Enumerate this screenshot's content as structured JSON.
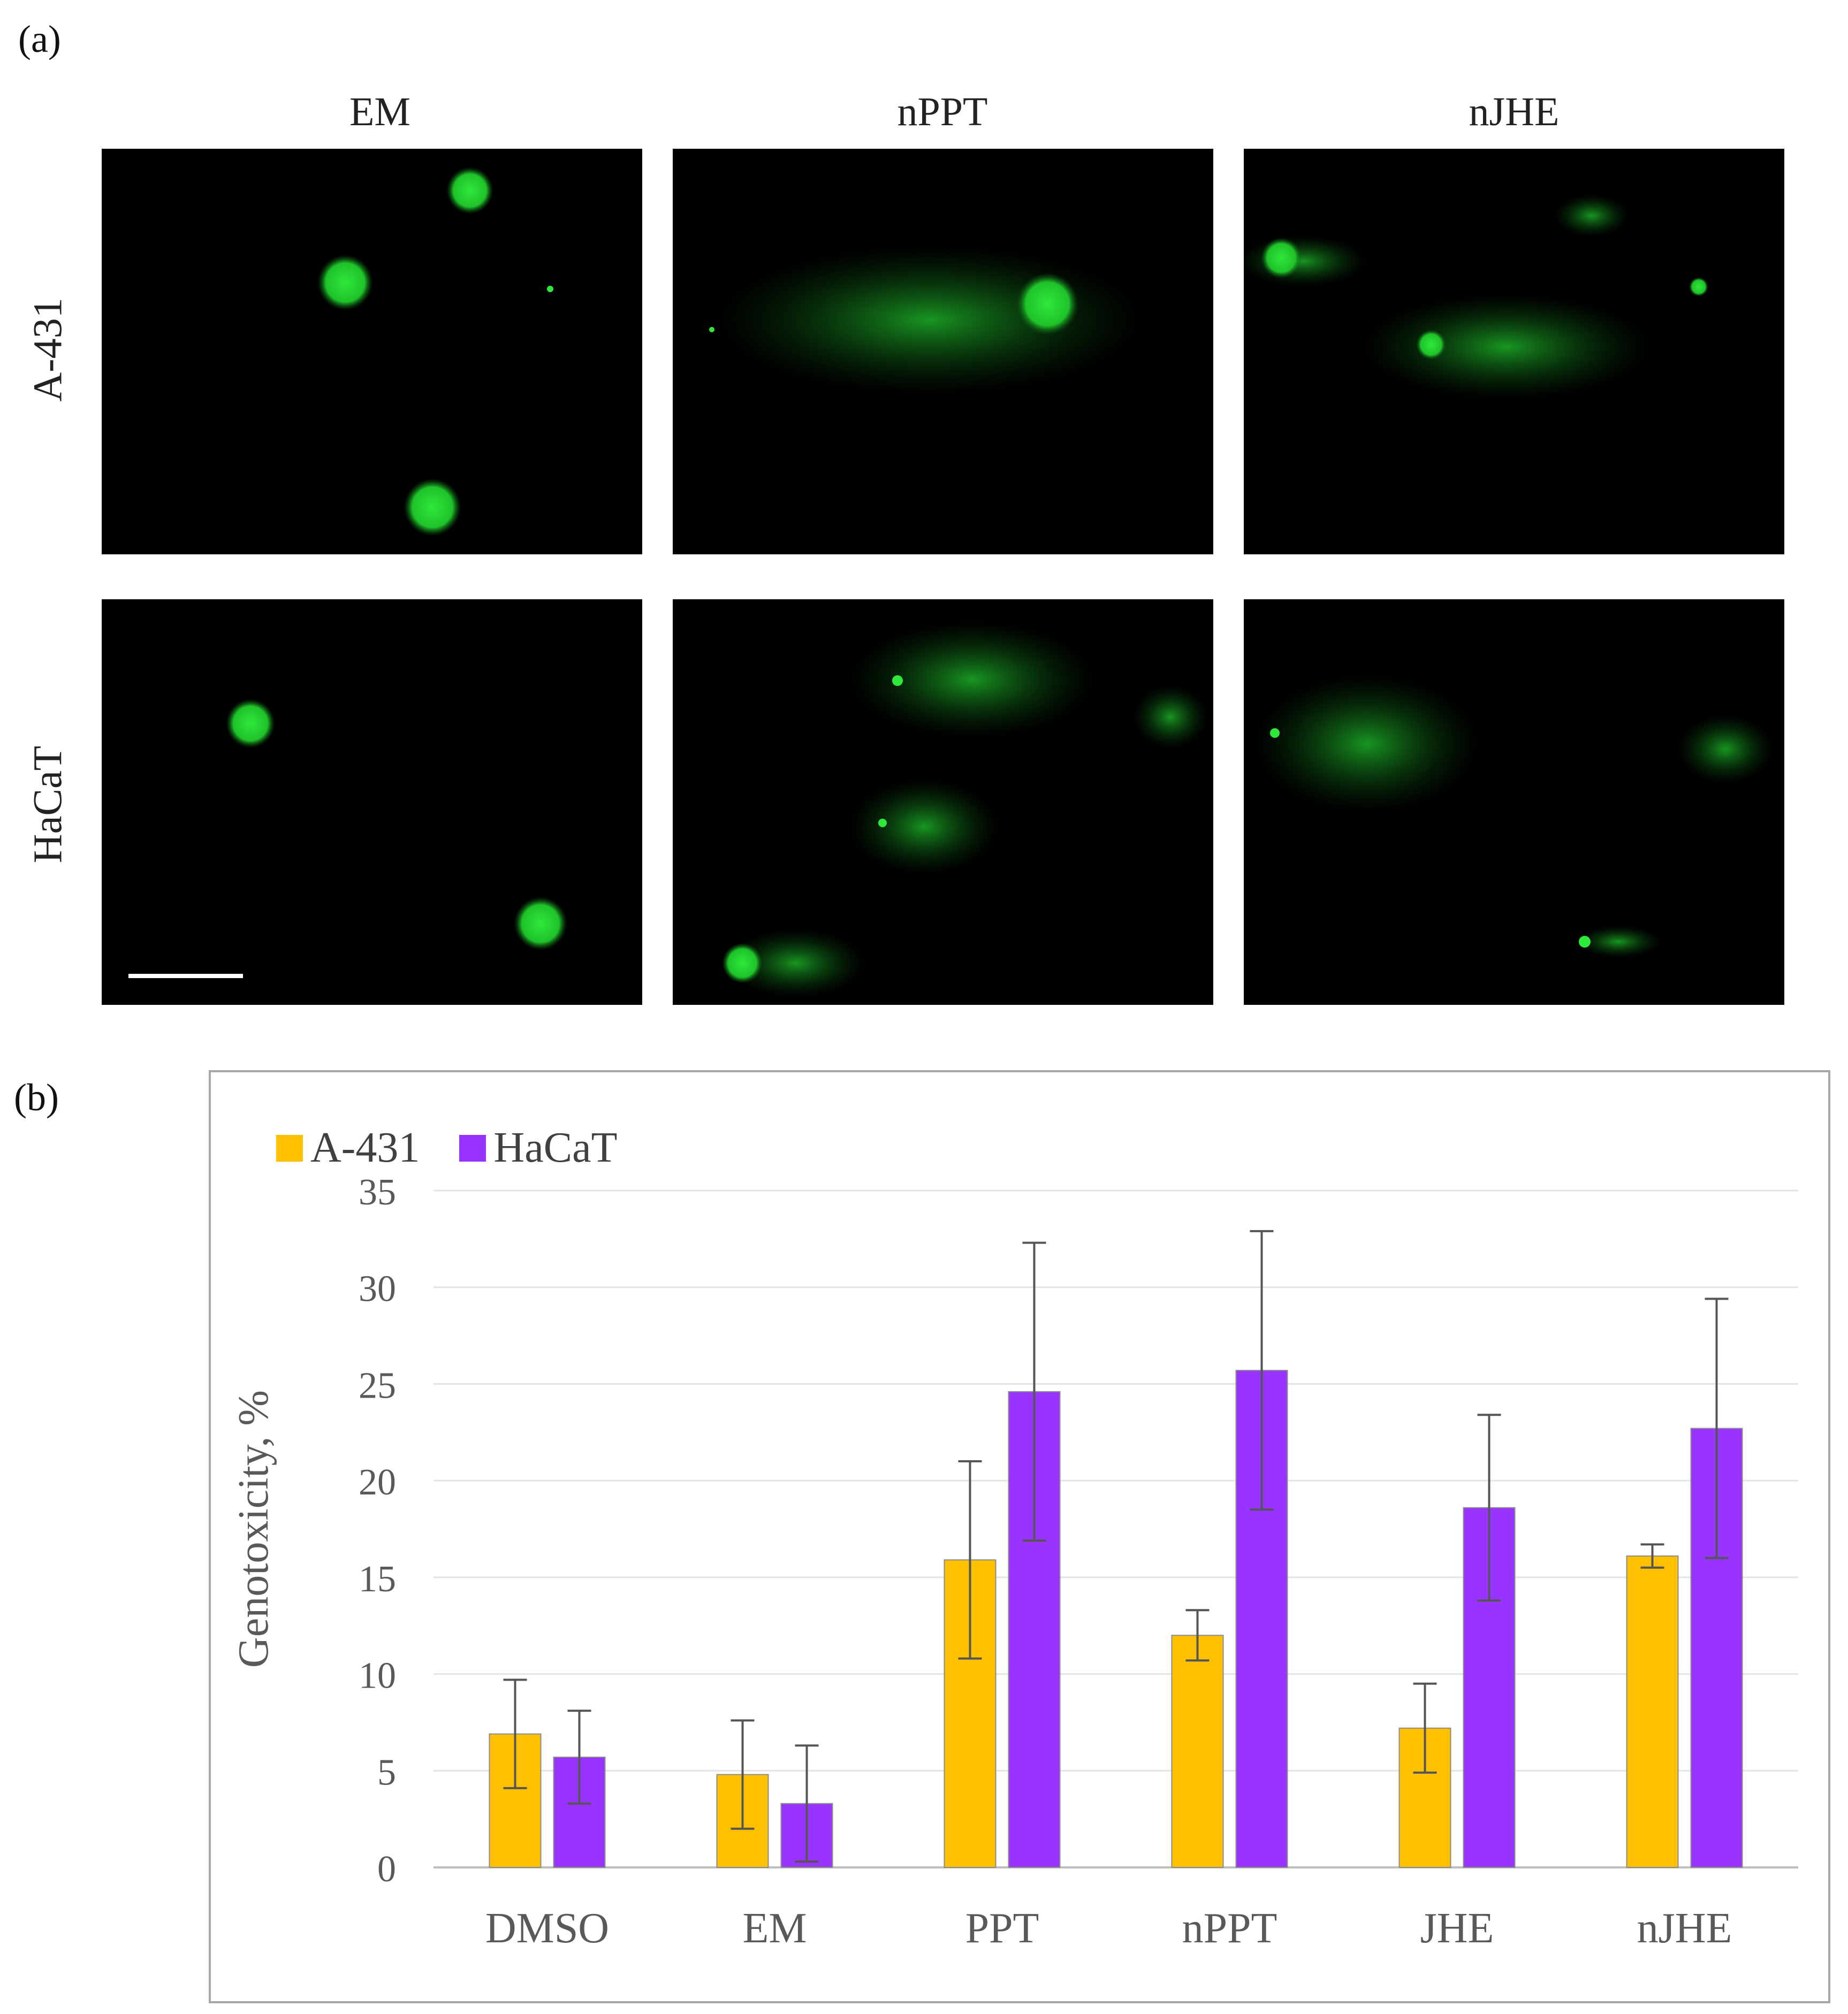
{
  "panel_a": {
    "label": "(a)",
    "columns": [
      "EM",
      "nPPT",
      "nJHE"
    ],
    "rows": [
      "A-431",
      "HaCaT"
    ]
  },
  "panel_b": {
    "label": "(b)"
  },
  "colors": {
    "A-431": "#ffc000",
    "HaCaT": "#9933ff",
    "comet": "#1fd12a",
    "error": "#555555",
    "grid": "#e4e4e4"
  },
  "chart_data": {
    "type": "bar",
    "categories": [
      "DMSO",
      "EM",
      "PPT",
      "nPPT",
      "JHE",
      "nJHE"
    ],
    "series": [
      {
        "name": "A-431",
        "values": [
          6.9,
          4.8,
          15.9,
          12.0,
          7.2,
          16.1
        ],
        "errors": [
          2.8,
          2.8,
          5.1,
          1.3,
          2.3,
          0.6
        ]
      },
      {
        "name": "HaCaT",
        "values": [
          5.7,
          3.3,
          24.6,
          25.7,
          18.6,
          22.7
        ],
        "errors": [
          2.4,
          3.0,
          7.7,
          7.2,
          4.8,
          6.7
        ]
      }
    ],
    "title": "",
    "xlabel": "",
    "ylabel": "Genotoxicity, %",
    "ylim": [
      0,
      35
    ],
    "yticks": [
      0,
      5,
      10,
      15,
      20,
      25,
      30,
      35
    ],
    "grid": true,
    "legend": "top-left"
  }
}
